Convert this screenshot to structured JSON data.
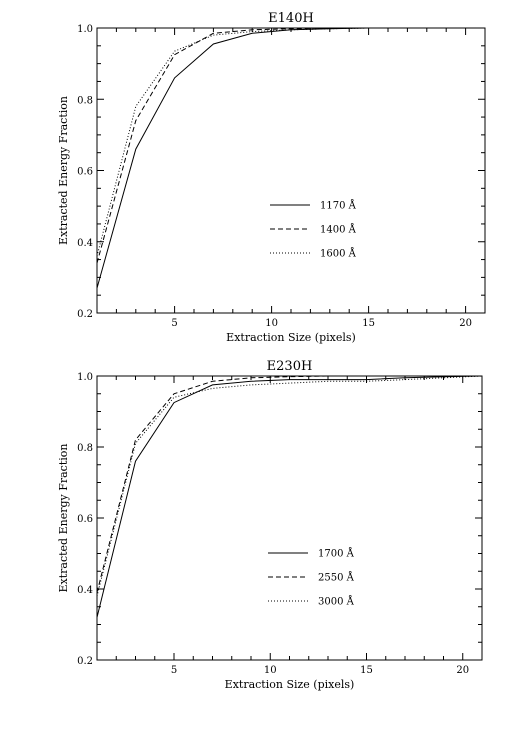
{
  "chart_data": [
    {
      "type": "line",
      "title": "E140H",
      "xlabel": "Extraction Size (pixels)",
      "ylabel": "Extracted Energy Fraction",
      "xlim": [
        1,
        21
      ],
      "ylim": [
        0.2,
        1.0
      ],
      "xticks": [
        5,
        10,
        15,
        20
      ],
      "yticks": [
        0.2,
        0.4,
        0.6,
        0.8,
        1.0
      ],
      "x": [
        1,
        3,
        5,
        7,
        9,
        11,
        13,
        15,
        17,
        19,
        21
      ],
      "legend_position": "lower-right",
      "series": [
        {
          "name": "1170 Å",
          "style": "solid",
          "values": [
            0.27,
            0.66,
            0.86,
            0.955,
            0.985,
            0.995,
            0.998,
            1.0,
            1.0,
            1.0,
            1.0
          ]
        },
        {
          "name": "1400 Å",
          "style": "dashed",
          "values": [
            0.34,
            0.74,
            0.925,
            0.985,
            0.995,
            0.998,
            1.0,
            1.0,
            1.0,
            1.0,
            1.0
          ]
        },
        {
          "name": "1600 Å",
          "style": "dotted",
          "values": [
            0.36,
            0.78,
            0.935,
            0.98,
            0.99,
            0.995,
            0.998,
            1.0,
            1.0,
            1.0,
            1.0
          ]
        }
      ]
    },
    {
      "type": "line",
      "title": "E230H",
      "xlabel": "Extraction Size (pixels)",
      "ylabel": "Extracted Energy Fraction",
      "xlim": [
        1,
        21
      ],
      "ylim": [
        0.2,
        1.0
      ],
      "xticks": [
        5,
        10,
        15,
        20
      ],
      "yticks": [
        0.2,
        0.4,
        0.6,
        0.8,
        1.0
      ],
      "x": [
        1,
        3,
        5,
        7,
        9,
        11,
        13,
        15,
        17,
        19,
        21
      ],
      "legend_position": "lower-right",
      "series": [
        {
          "name": "1700 Å",
          "style": "solid",
          "values": [
            0.32,
            0.76,
            0.925,
            0.975,
            0.985,
            0.99,
            0.99,
            0.99,
            0.995,
            0.998,
            1.0
          ]
        },
        {
          "name": "2550 Å",
          "style": "dashed",
          "values": [
            0.39,
            0.82,
            0.95,
            0.985,
            0.995,
            0.998,
            1.0,
            1.0,
            1.0,
            1.0,
            1.0
          ]
        },
        {
          "name": "3000 Å",
          "style": "dotted",
          "values": [
            0.38,
            0.81,
            0.94,
            0.965,
            0.975,
            0.98,
            0.985,
            0.985,
            0.99,
            0.995,
            1.0
          ]
        }
      ]
    }
  ]
}
